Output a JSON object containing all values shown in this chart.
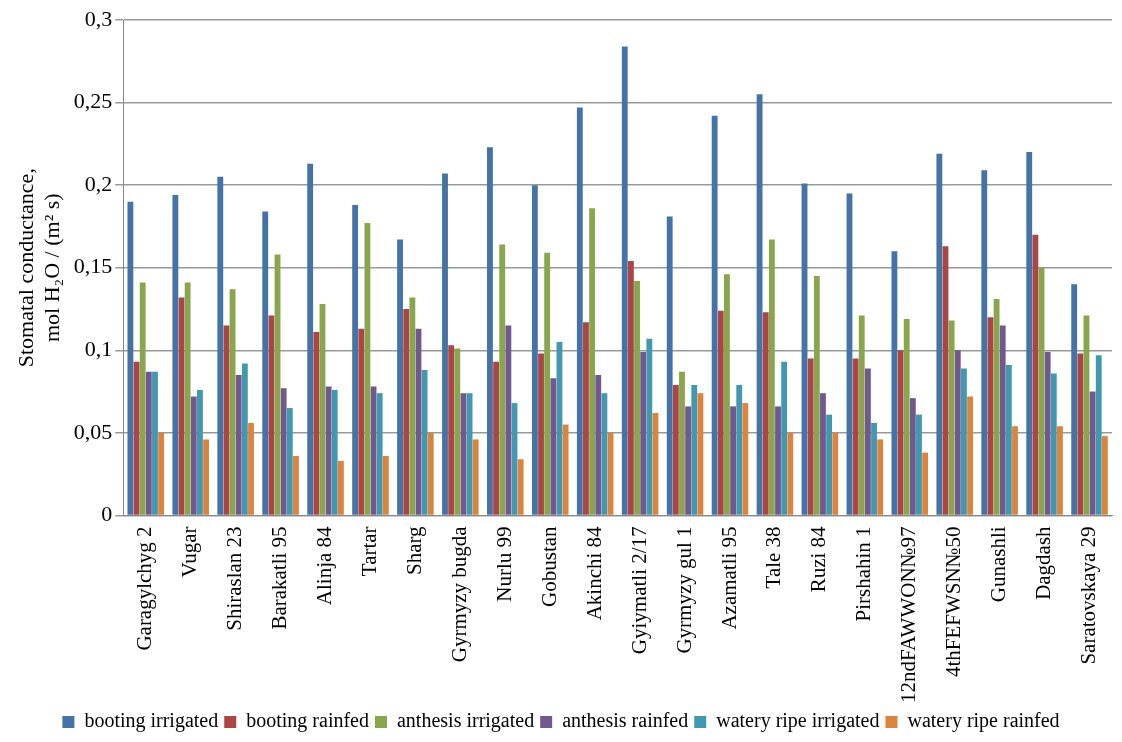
{
  "chart_data": {
    "type": "bar",
    "ylabel": "Stomatal conductance, mol H₂O / (m² s)",
    "categories": [
      "Garagylchyg 2",
      "Vugar",
      "Shiraslan 23",
      "Barakatli 95",
      "Alinja 84",
      "Tartar",
      "Sharg",
      "Gyrmyzy bugda",
      "Nurlu 99",
      "Gobustan",
      "Akinchi 84",
      "Gyiymatli 2/17",
      "Gyrmyzy gul 1",
      "Azamatli 95",
      "Tale 38",
      "Ruzi 84",
      "Pirshahin 1",
      "12ndFAWWON№97",
      "4thFEFWSN№50",
      "Gunashli",
      "Dagdash",
      "Saratovskaya 29"
    ],
    "series": [
      {
        "name": "booting irrigated",
        "color": "#4572a7",
        "values": [
          0.19,
          0.194,
          0.205,
          0.184,
          0.213,
          0.188,
          0.167,
          0.207,
          0.223,
          0.2,
          0.247,
          0.284,
          0.181,
          0.242,
          0.255,
          0.201,
          0.195,
          0.16,
          0.219,
          0.209,
          0.22,
          0.14
        ]
      },
      {
        "name": "booting rainfed",
        "color": "#aa4643",
        "values": [
          0.093,
          0.132,
          0.115,
          0.121,
          0.111,
          0.113,
          0.125,
          0.103,
          0.093,
          0.098,
          0.117,
          0.154,
          0.079,
          0.124,
          0.123,
          0.095,
          0.095,
          0.1,
          0.163,
          0.12,
          0.17,
          0.098
        ]
      },
      {
        "name": "anthesis irrigated",
        "color": "#89a54e",
        "values": [
          0.141,
          0.141,
          0.137,
          0.158,
          0.128,
          0.177,
          0.132,
          0.101,
          0.164,
          0.159,
          0.186,
          0.142,
          0.087,
          0.146,
          0.167,
          0.145,
          0.121,
          0.119,
          0.118,
          0.131,
          0.15,
          0.121
        ]
      },
      {
        "name": "anthesis rainfed",
        "color": "#71588f",
        "values": [
          0.087,
          0.072,
          0.085,
          0.077,
          0.078,
          0.078,
          0.113,
          0.074,
          0.115,
          0.083,
          0.085,
          0.099,
          0.066,
          0.066,
          0.066,
          0.074,
          0.089,
          0.071,
          0.1,
          0.115,
          0.099,
          0.075
        ]
      },
      {
        "name": "watery ripe irrigated",
        "color": "#4198af",
        "values": [
          0.087,
          0.076,
          0.092,
          0.065,
          0.076,
          0.074,
          0.088,
          0.074,
          0.068,
          0.105,
          0.074,
          0.107,
          0.079,
          0.079,
          0.093,
          0.061,
          0.056,
          0.061,
          0.089,
          0.091,
          0.086,
          0.097
        ]
      },
      {
        "name": "watery ripe rainfed",
        "color": "#db843d",
        "values": [
          0.05,
          0.046,
          0.056,
          0.036,
          0.033,
          0.036,
          0.05,
          0.046,
          0.034,
          0.055,
          0.05,
          0.062,
          0.074,
          0.068,
          0.05,
          0.05,
          0.046,
          0.038,
          0.072,
          0.054,
          0.054,
          0.048
        ]
      }
    ],
    "ylim": [
      0,
      0.3
    ],
    "yticks": [
      0,
      {
        "value": 0.05,
        "label": "0,05"
      },
      {
        "value": 0.1,
        "label": "0,1"
      },
      {
        "value": 0.15,
        "label": "0,15"
      },
      {
        "value": 0.2,
        "label": "0,2"
      },
      {
        "value": 0.25,
        "label": "0,25"
      },
      {
        "value": 0.3,
        "label": "0,3"
      }
    ],
    "grid": "y",
    "legend": "bottom"
  }
}
